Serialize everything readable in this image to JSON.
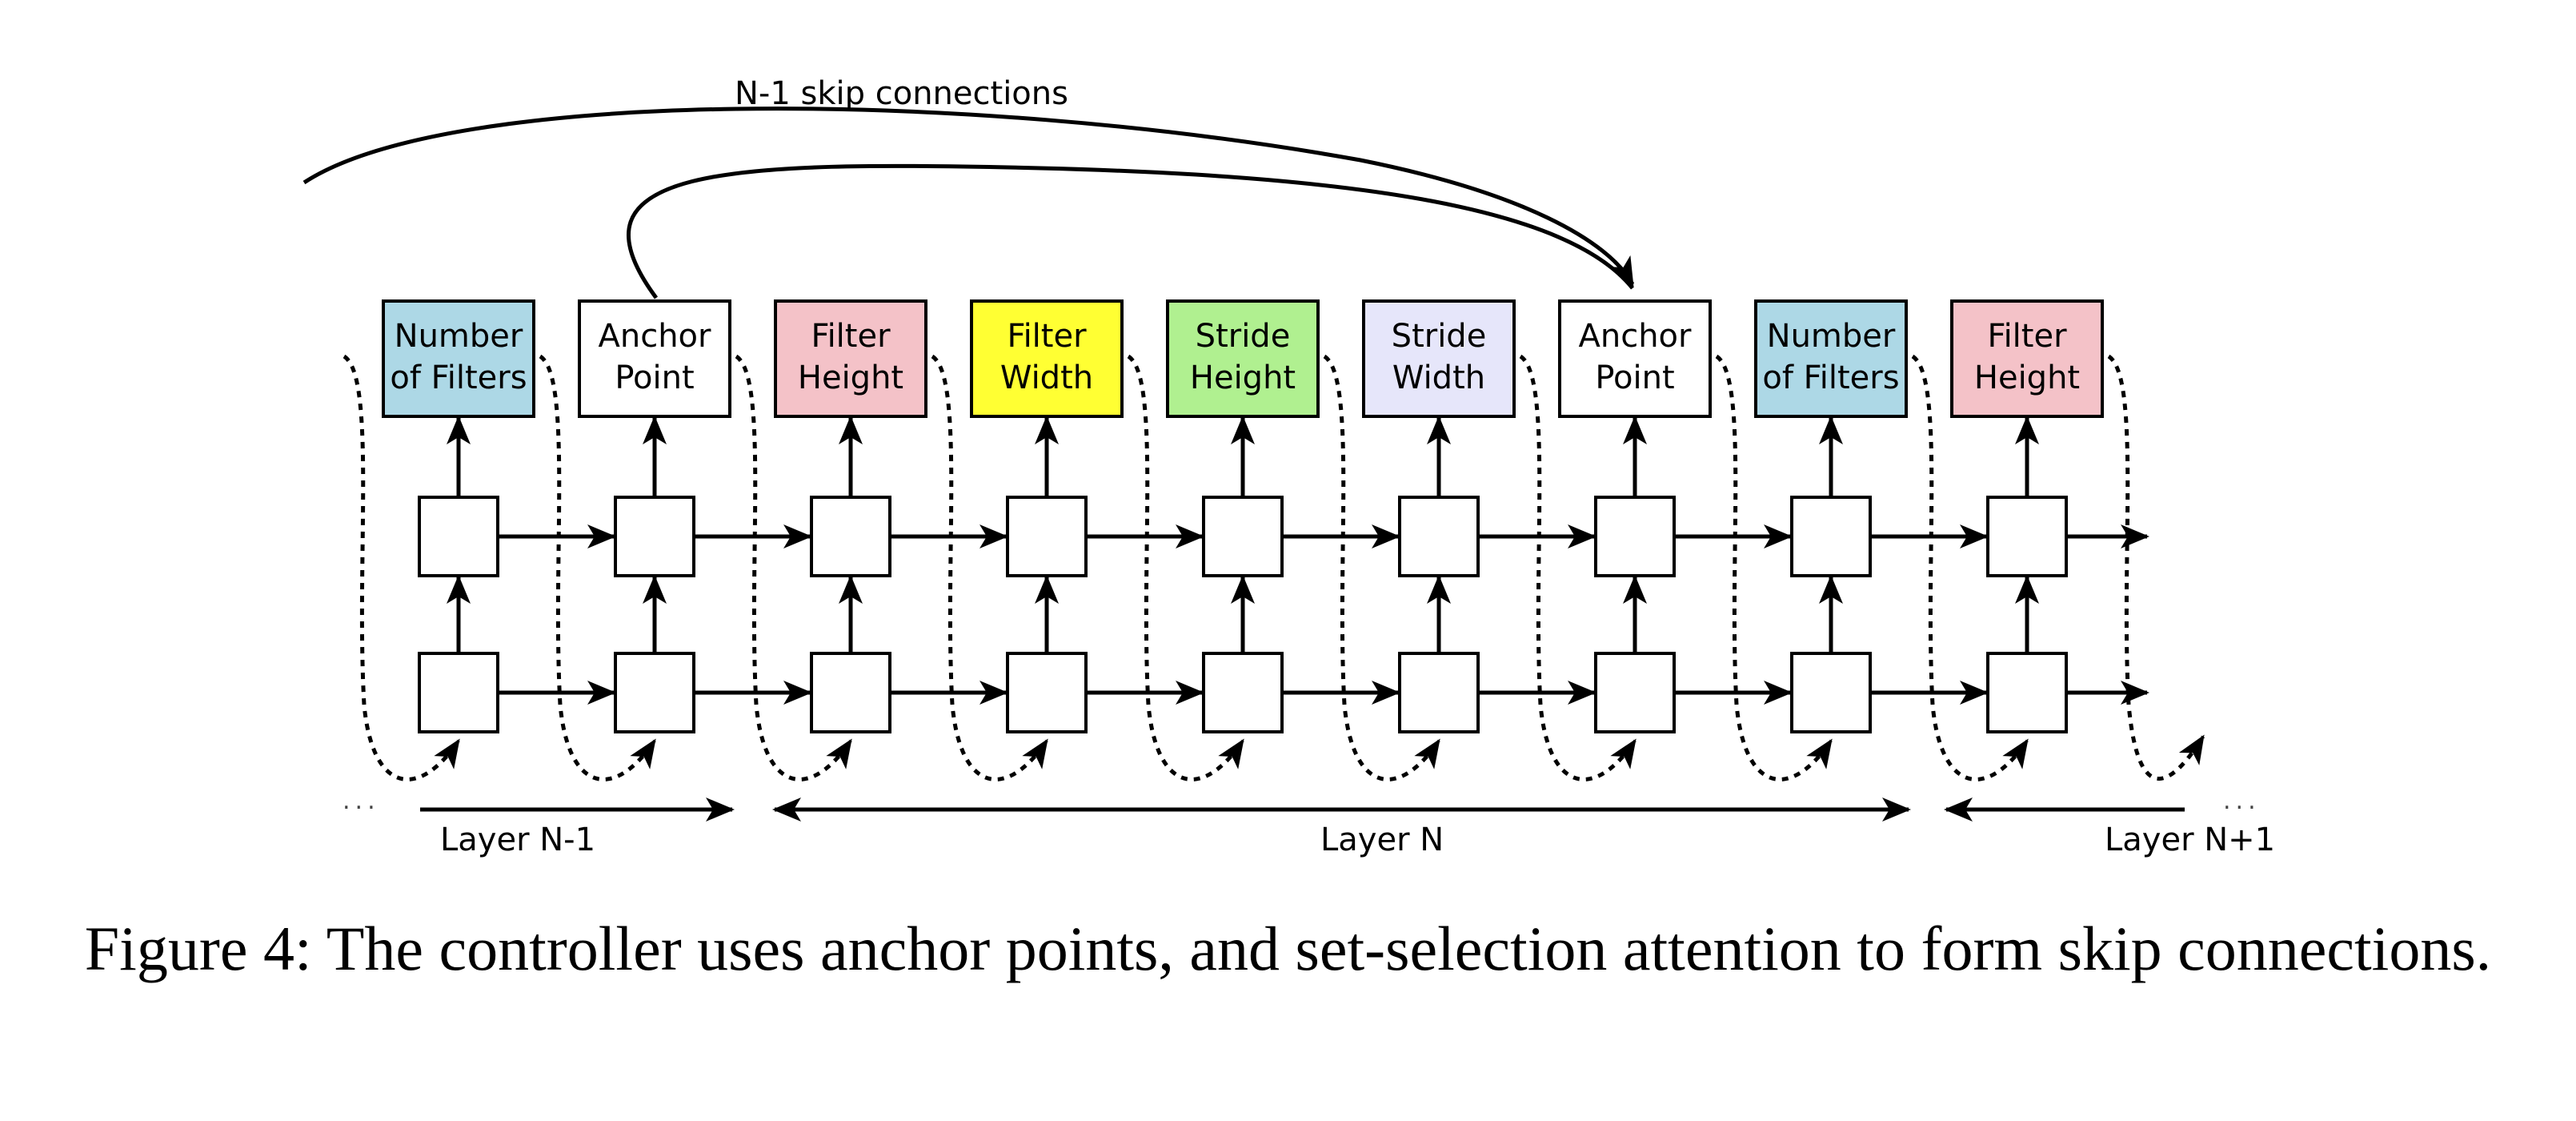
{
  "skip_label": "N-1 skip connections",
  "outputs": [
    {
      "lines": [
        "Number",
        "of Filters"
      ],
      "fill": "#add8e6"
    },
    {
      "lines": [
        "Anchor",
        "Point"
      ],
      "fill": "#ffffff"
    },
    {
      "lines": [
        "Filter",
        "Height"
      ],
      "fill": "#f4c2c8"
    },
    {
      "lines": [
        "Filter",
        "Width"
      ],
      "fill": "#ffff33"
    },
    {
      "lines": [
        "Stride",
        "Height"
      ],
      "fill": "#b0f090"
    },
    {
      "lines": [
        "Stride",
        "Width"
      ],
      "fill": "#e6e6fa"
    },
    {
      "lines": [
        "Anchor",
        "Point"
      ],
      "fill": "#ffffff"
    },
    {
      "lines": [
        "Number",
        "of Filters"
      ],
      "fill": "#add8e6"
    },
    {
      "lines": [
        "Filter",
        "Height"
      ],
      "fill": "#f4c2c8"
    }
  ],
  "layers": {
    "prev": "Layer N-1",
    "current": "Layer N",
    "next": "Layer N+1",
    "ellipsis_left": "...",
    "ellipsis_right": "..."
  },
  "caption": "Figure 4: The controller uses anchor points, and set-selection attention to form skip connections."
}
